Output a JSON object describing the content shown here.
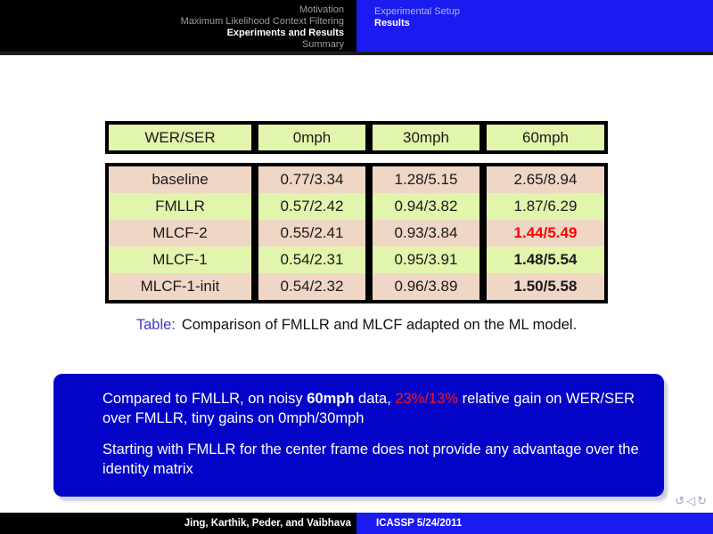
{
  "header": {
    "left_items": [
      {
        "label": "Motivation",
        "active": false
      },
      {
        "label": "Maximum Likelihood Context Filtering",
        "active": false
      },
      {
        "label": "Experiments and Results",
        "active": true
      },
      {
        "label": "Summary",
        "active": false
      }
    ],
    "right_items": [
      {
        "label": "Experimental Setup",
        "active": false
      },
      {
        "label": "Results",
        "active": true
      }
    ]
  },
  "table": {
    "columns": [
      "WER/SER",
      "0mph",
      "30mph",
      "60mph"
    ],
    "rows": [
      {
        "label": "baseline",
        "values": [
          "0.77/3.34",
          "1.28/5.15",
          "2.65/8.94"
        ],
        "row_color": "pink",
        "emphasis_last": "none"
      },
      {
        "label": "FMLLR",
        "values": [
          "0.57/2.42",
          "0.94/3.82",
          "1.87/6.29"
        ],
        "row_color": "green",
        "emphasis_last": "none"
      },
      {
        "label": "MLCF-2",
        "values": [
          "0.55/2.41",
          "0.93/3.84",
          "1.44/5.49"
        ],
        "row_color": "pink",
        "emphasis_last": "red-bold"
      },
      {
        "label": "MLCF-1",
        "values": [
          "0.54/2.31",
          "0.95/3.91",
          "1.48/5.54"
        ],
        "row_color": "green",
        "emphasis_last": "bold"
      },
      {
        "label": "MLCF-1-init",
        "values": [
          "0.54/2.32",
          "0.96/3.89",
          "1.50/5.58"
        ],
        "row_color": "pink",
        "emphasis_last": "bold"
      }
    ]
  },
  "caption": {
    "prefix": "Table:",
    "text": "Comparison of FMLLR and MLCF adapted on the ML model."
  },
  "callout": {
    "p1_segments": [
      {
        "text": "Compared to FMLLR, on noisy ",
        "style": "normal"
      },
      {
        "text": "60mph",
        "style": "bold"
      },
      {
        "text": " data, ",
        "style": "normal"
      },
      {
        "text": "23%/13%",
        "style": "red"
      },
      {
        "text": " relative gain on WER/SER over FMLLR, tiny gains on 0mph/30mph",
        "style": "normal"
      }
    ],
    "p2": "Starting with FMLLR for the center frame does not provide any advantage over the identity matrix"
  },
  "nav": {
    "icons": [
      {
        "name": "undo-rotation-icon",
        "glyph": "↺"
      },
      {
        "name": "back-arrow-icon",
        "glyph": "◁"
      },
      {
        "name": "redo-rotation-icon",
        "glyph": "↻"
      }
    ]
  },
  "footer": {
    "authors": "Jing, Karthik, Peder, and Vaibhava",
    "conference": "ICASSP 5/24/2011"
  },
  "colors": {
    "accent_blue": "#1b1bef",
    "box_blue": "#0404c8",
    "table_green": "#e2f5ac",
    "table_pink": "#efd6c5",
    "highlight_red": "#ff0000",
    "caption_blue": "#3b3bd0"
  }
}
